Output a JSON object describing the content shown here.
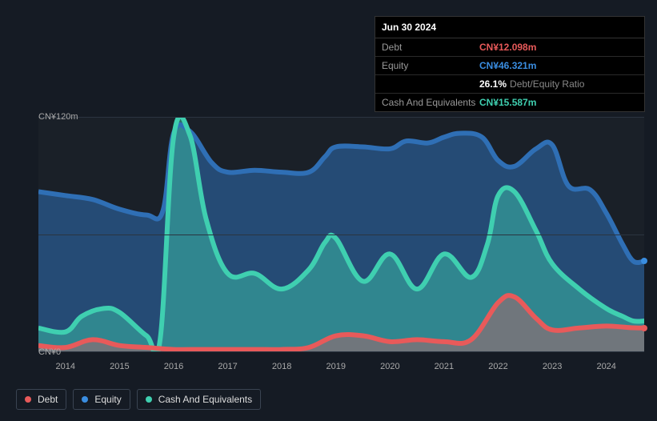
{
  "tooltip": {
    "date": "Jun 30 2024",
    "rows": [
      {
        "label": "Debt",
        "value": "CN¥12.098m",
        "color": "#e85a5a"
      },
      {
        "label": "Equity",
        "value": "CN¥46.321m",
        "color": "#3a8de0"
      },
      {
        "label": "",
        "value": "26.1%",
        "suffix": "Debt/Equity Ratio",
        "color": "#ffffff"
      },
      {
        "label": "Cash And Equivalents",
        "value": "CN¥15.587m",
        "color": "#3fcfb0"
      }
    ]
  },
  "chart": {
    "type": "area",
    "background_color": "#1a2028",
    "grid_color": "#2b3440",
    "y": {
      "ticks": [
        {
          "v": 0,
          "label": "CN¥0"
        },
        {
          "v": 60,
          "label": ""
        },
        {
          "v": 120,
          "label": "CN¥120m"
        }
      ],
      "min": 0,
      "max": 120
    },
    "x": {
      "min": 2013.5,
      "max": 2024.7,
      "ticks": [
        2014,
        2015,
        2016,
        2017,
        2018,
        2019,
        2020,
        2021,
        2022,
        2023,
        2024
      ]
    },
    "series": [
      {
        "name": "Equity",
        "color": "#2f6fb5",
        "fill_opacity": 0.55,
        "line_width": 2,
        "points": [
          [
            2013.5,
            82
          ],
          [
            2014.0,
            80
          ],
          [
            2014.5,
            78
          ],
          [
            2015.0,
            73
          ],
          [
            2015.5,
            70
          ],
          [
            2015.8,
            72
          ],
          [
            2016.0,
            112
          ],
          [
            2016.3,
            113
          ],
          [
            2016.7,
            97
          ],
          [
            2017.0,
            92
          ],
          [
            2017.5,
            93
          ],
          [
            2018.0,
            92
          ],
          [
            2018.5,
            92
          ],
          [
            2018.8,
            100
          ],
          [
            2019.0,
            105
          ],
          [
            2019.5,
            105
          ],
          [
            2020.0,
            104
          ],
          [
            2020.3,
            108
          ],
          [
            2020.7,
            107
          ],
          [
            2021.0,
            110
          ],
          [
            2021.3,
            112
          ],
          [
            2021.7,
            110
          ],
          [
            2022.0,
            98
          ],
          [
            2022.3,
            95
          ],
          [
            2022.7,
            104
          ],
          [
            2023.0,
            106
          ],
          [
            2023.3,
            85
          ],
          [
            2023.7,
            83
          ],
          [
            2024.0,
            71
          ],
          [
            2024.3,
            55
          ],
          [
            2024.5,
            46.3
          ],
          [
            2024.7,
            46.3
          ]
        ]
      },
      {
        "name": "Cash And Equivalents",
        "color": "#3fcfb0",
        "fill_opacity": 0.45,
        "line_width": 2,
        "points": [
          [
            2013.5,
            12
          ],
          [
            2014.0,
            10
          ],
          [
            2014.3,
            18
          ],
          [
            2014.7,
            22
          ],
          [
            2015.0,
            20
          ],
          [
            2015.5,
            8
          ],
          [
            2015.75,
            6
          ],
          [
            2016.0,
            110
          ],
          [
            2016.3,
            111
          ],
          [
            2016.6,
            68
          ],
          [
            2017.0,
            40
          ],
          [
            2017.5,
            40
          ],
          [
            2018.0,
            32
          ],
          [
            2018.5,
            42
          ],
          [
            2018.8,
            56
          ],
          [
            2019.0,
            58
          ],
          [
            2019.5,
            36
          ],
          [
            2020.0,
            50
          ],
          [
            2020.5,
            32
          ],
          [
            2021.0,
            50
          ],
          [
            2021.5,
            38
          ],
          [
            2021.8,
            55
          ],
          [
            2022.0,
            80
          ],
          [
            2022.3,
            82
          ],
          [
            2022.7,
            62
          ],
          [
            2023.0,
            45
          ],
          [
            2023.5,
            32
          ],
          [
            2024.0,
            22
          ],
          [
            2024.3,
            18
          ],
          [
            2024.5,
            15.6
          ],
          [
            2024.7,
            15.6
          ]
        ]
      },
      {
        "name": "Debt",
        "color": "#e85a5a",
        "fill_opacity": 0.35,
        "line_width": 2,
        "points": [
          [
            2013.5,
            3
          ],
          [
            2014.0,
            2
          ],
          [
            2014.5,
            6
          ],
          [
            2015.0,
            3
          ],
          [
            2015.5,
            2
          ],
          [
            2016.0,
            1
          ],
          [
            2016.5,
            1
          ],
          [
            2017.0,
            1
          ],
          [
            2017.5,
            1
          ],
          [
            2018.0,
            1
          ],
          [
            2018.5,
            2
          ],
          [
            2019.0,
            8
          ],
          [
            2019.5,
            8
          ],
          [
            2020.0,
            5
          ],
          [
            2020.5,
            6
          ],
          [
            2021.0,
            5
          ],
          [
            2021.5,
            6
          ],
          [
            2022.0,
            25
          ],
          [
            2022.3,
            28
          ],
          [
            2022.7,
            17
          ],
          [
            2023.0,
            11
          ],
          [
            2023.5,
            12
          ],
          [
            2024.0,
            13
          ],
          [
            2024.5,
            12.1
          ],
          [
            2024.7,
            12.1
          ]
        ]
      }
    ],
    "end_markers": [
      {
        "series": "Equity",
        "color": "#3a8de0",
        "x": 2024.7,
        "y": 46.3
      },
      {
        "series": "Debt",
        "color": "#e85a5a",
        "x": 2024.7,
        "y": 12.1
      }
    ]
  },
  "legend": {
    "items": [
      {
        "label": "Debt",
        "color": "#e85a5a"
      },
      {
        "label": "Equity",
        "color": "#3a8de0"
      },
      {
        "label": "Cash And Equivalents",
        "color": "#3fcfb0"
      }
    ],
    "border_color": "#3a4452",
    "text_color": "#dddddd",
    "fontsize": 12
  }
}
